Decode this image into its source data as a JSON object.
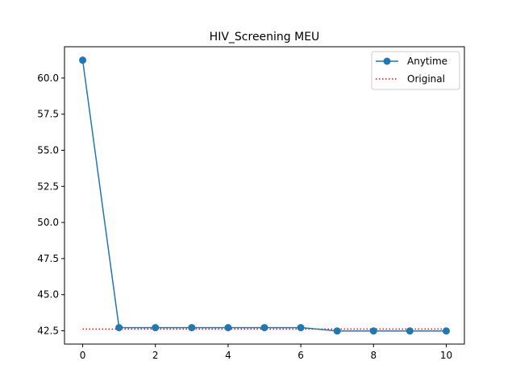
{
  "chart_data": {
    "type": "line",
    "title": "HIV_Screening MEU",
    "xlabel": "",
    "ylabel": "",
    "x": [
      0,
      1,
      2,
      3,
      4,
      5,
      6,
      7,
      8,
      9,
      10
    ],
    "xlim": [
      -0.5,
      10.5
    ],
    "ylim": [
      41.58,
      62.17
    ],
    "xticks": [
      0,
      2,
      4,
      6,
      8,
      10
    ],
    "xtick_labels": [
      "0",
      "2",
      "4",
      "6",
      "8",
      "10"
    ],
    "yticks": [
      42.5,
      45.0,
      47.5,
      50.0,
      52.5,
      55.0,
      57.5,
      60.0
    ],
    "ytick_labels": [
      "42.5",
      "45.0",
      "47.5",
      "50.0",
      "52.5",
      "55.0",
      "57.5",
      "60.0"
    ],
    "grid": false,
    "legend_position": "top-right",
    "series": [
      {
        "name": "Anytime",
        "style": "solid-with-circle-markers",
        "color": "#1f77b4",
        "values": [
          61.24,
          42.72,
          42.72,
          42.72,
          42.72,
          42.72,
          42.72,
          42.49,
          42.49,
          42.49,
          42.49
        ]
      },
      {
        "name": "Original",
        "style": "dotted",
        "color": "#ff0000",
        "values": [
          42.62,
          42.62,
          42.62,
          42.62,
          42.62,
          42.62,
          42.62,
          42.62,
          42.62,
          42.62,
          42.62
        ]
      }
    ]
  }
}
